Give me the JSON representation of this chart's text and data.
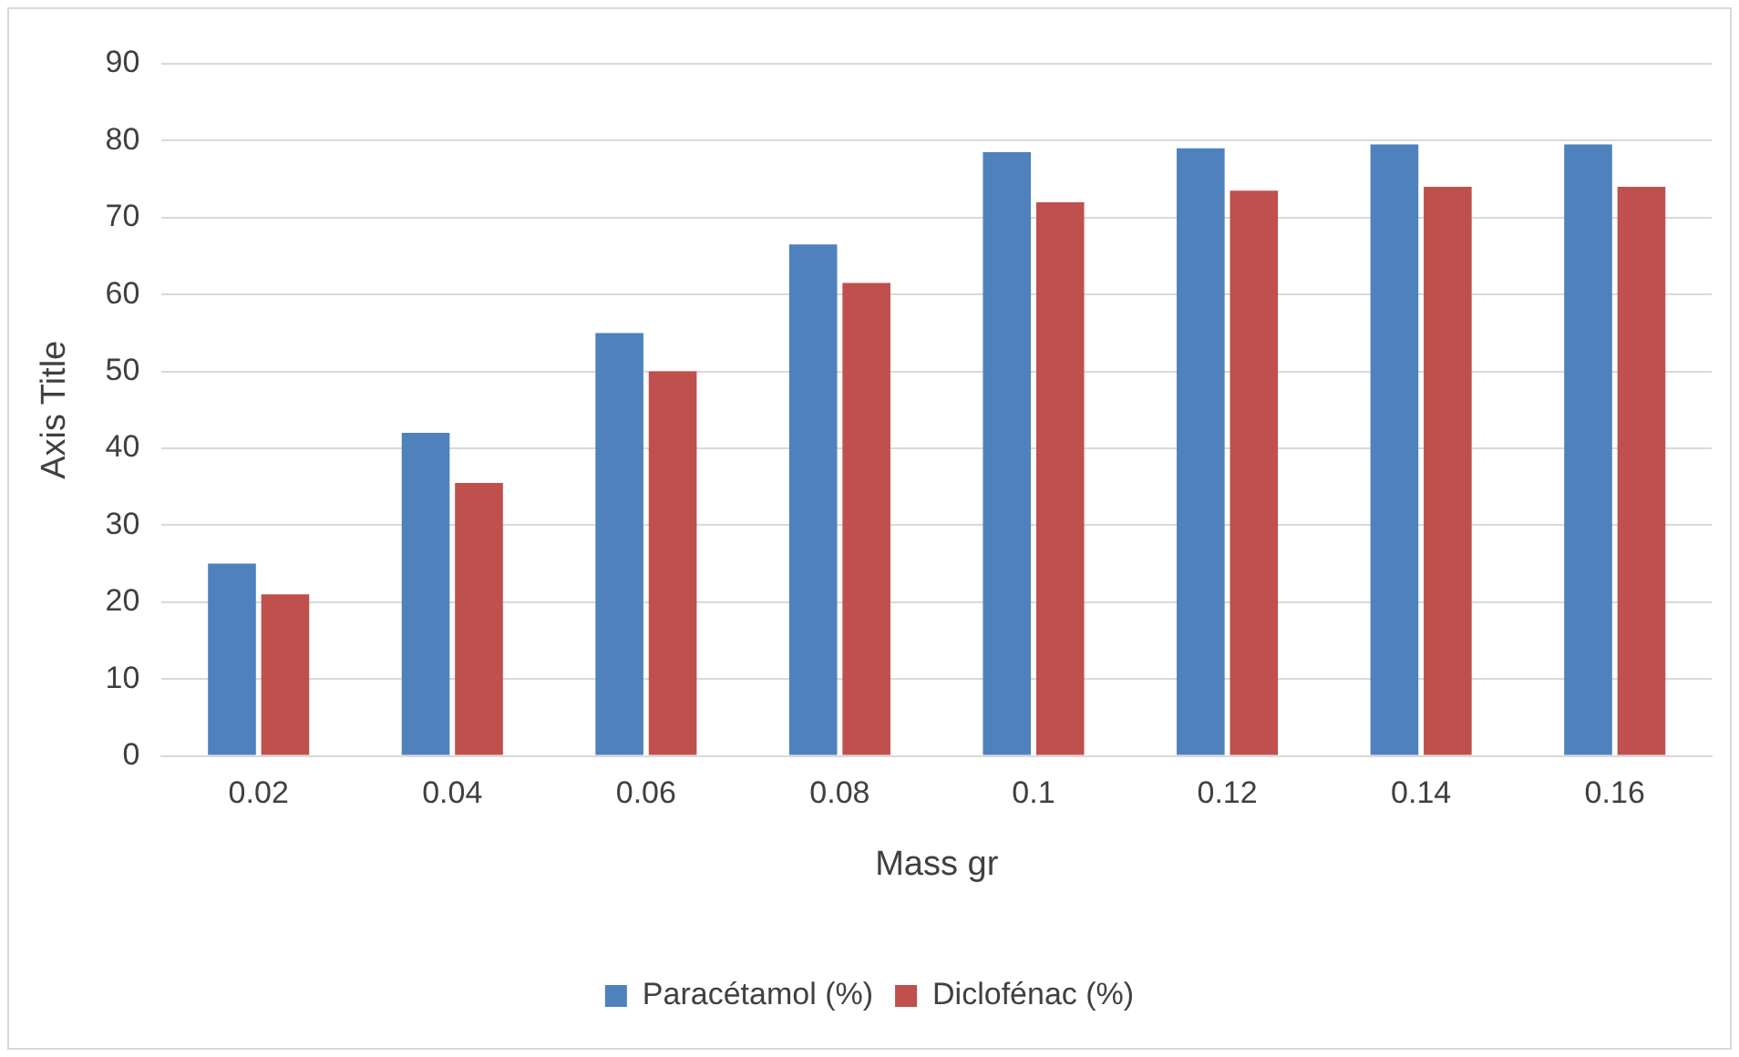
{
  "chart_data": {
    "type": "bar",
    "xlabel": "Mass gr",
    "ylabel": "Axis Title",
    "categories": [
      "0.02",
      "0.04",
      "0.06",
      "0.08",
      "0.1",
      "0.12",
      "0.14",
      "0.16"
    ],
    "series": [
      {
        "name": "Paracétamol (%)",
        "color": "#4f81bd",
        "values": [
          25,
          42,
          55,
          66.5,
          78.5,
          79,
          79.5,
          79.5
        ]
      },
      {
        "name": "Diclofénac (%)",
        "color": "#c0504d",
        "values": [
          21,
          35.5,
          50,
          61.5,
          72,
          73.5,
          74,
          74
        ]
      }
    ],
    "ylim": [
      0,
      90
    ],
    "yticks": [
      0,
      10,
      20,
      30,
      40,
      50,
      60,
      70,
      80,
      90
    ],
    "grid": "y",
    "legend": "bottom"
  }
}
